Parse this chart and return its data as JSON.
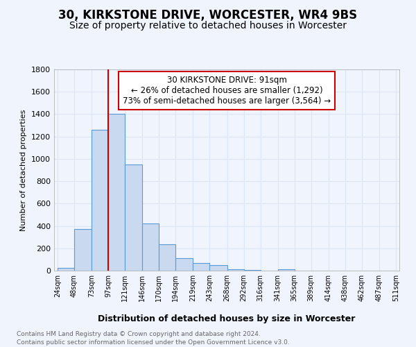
{
  "title": "30, KIRKSTONE DRIVE, WORCESTER, WR4 9BS",
  "subtitle": "Size of property relative to detached houses in Worcester",
  "xlabel": "Distribution of detached houses by size in Worcester",
  "ylabel": "Number of detached properties",
  "footnote1": "Contains HM Land Registry data © Crown copyright and database right 2024.",
  "footnote2": "Contains public sector information licensed under the Open Government Licence v3.0.",
  "property_label": "30 KIRKSTONE DRIVE: 91sqm",
  "annotation_line1": "← 26% of detached houses are smaller (1,292)",
  "annotation_line2": "73% of semi-detached houses are larger (3,564) →",
  "bar_edges": [
    24,
    48,
    73,
    97,
    121,
    146,
    170,
    194,
    219,
    243,
    268,
    292,
    316,
    341,
    365,
    389,
    414,
    438,
    462,
    487,
    511
  ],
  "bar_heights": [
    25,
    375,
    1260,
    1400,
    950,
    420,
    235,
    110,
    70,
    50,
    10,
    5,
    2,
    15,
    2,
    1,
    0,
    0,
    0,
    0
  ],
  "bar_color": "#c9d9f0",
  "bar_edge_color": "#5b9bd5",
  "vline_x": 97,
  "vline_color": "#cc0000",
  "annotation_box_color": "#cc0000",
  "ylim": [
    0,
    1800
  ],
  "yticks": [
    0,
    200,
    400,
    600,
    800,
    1000,
    1200,
    1400,
    1600,
    1800
  ],
  "background_color": "#f0f4fc",
  "grid_color": "#dce6f5",
  "title_fontsize": 12,
  "subtitle_fontsize": 10
}
